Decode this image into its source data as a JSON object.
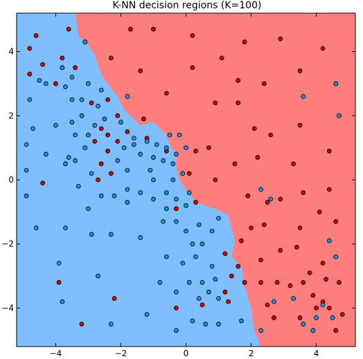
{
  "chart_data": {
    "type": "scatter",
    "title": "K-NN decision regions (K=100)",
    "xlabel": "",
    "ylabel": "",
    "xlim": [
      -5.2,
      5.2
    ],
    "ylim": [
      -5.2,
      5.2
    ],
    "xticks": [
      -4,
      -2,
      0,
      2,
      4
    ],
    "yticks": [
      -4,
      -2,
      0,
      2,
      4
    ],
    "grid": false,
    "legend": "none",
    "region_colors": {
      "red": "#ff7f7f",
      "blue": "#80bfff"
    },
    "point_colors": {
      "red": "#cc0000",
      "blue": "#1f8fdf"
    },
    "decision_boundary": [
      [
        -3.4,
        5.2
      ],
      [
        -3.3,
        4.5
      ],
      [
        -3.0,
        4.2
      ],
      [
        -2.8,
        3.9
      ],
      [
        -2.6,
        3.3
      ],
      [
        -2.4,
        3.0
      ],
      [
        -2.1,
        2.6
      ],
      [
        -1.9,
        2.2
      ],
      [
        -1.7,
        2.0
      ],
      [
        -1.4,
        1.7
      ],
      [
        -1.0,
        1.8
      ],
      [
        -0.6,
        1.4
      ],
      [
        -0.5,
        1.1
      ],
      [
        -0.3,
        0.8
      ],
      [
        -0.3,
        0.4
      ],
      [
        -0.2,
        0.0
      ],
      [
        0.0,
        -0.3
      ],
      [
        0.3,
        -0.7
      ],
      [
        0.9,
        -0.9
      ],
      [
        1.3,
        -1.1
      ],
      [
        1.5,
        -1.9
      ],
      [
        1.4,
        -2.4
      ],
      [
        1.7,
        -2.7
      ],
      [
        1.8,
        -3.3
      ],
      [
        2.0,
        -4.0
      ],
      [
        2.1,
        -4.7
      ],
      [
        2.3,
        -5.2
      ]
    ],
    "series": [
      {
        "class": "red",
        "points": [
          [
            -4.6,
            4.5
          ],
          [
            -4.8,
            4.1
          ],
          [
            -3.6,
            4.7
          ],
          [
            -2.3,
            3.8
          ],
          [
            -3.8,
            3.8
          ],
          [
            -4.4,
            3.6
          ],
          [
            -4.8,
            3.3
          ],
          [
            -3.4,
            3.5
          ],
          [
            -4.0,
            3.0
          ],
          [
            -2.9,
            2.4
          ],
          [
            -1.7,
            4.7
          ],
          [
            -1.0,
            4.7
          ],
          [
            0.2,
            4.5
          ],
          [
            -1.4,
            3.4
          ],
          [
            -0.6,
            2.7
          ],
          [
            0.2,
            3.5
          ],
          [
            1.1,
            3.8
          ],
          [
            0.9,
            2.4
          ],
          [
            1.8,
            4.3
          ],
          [
            2.9,
            4.4
          ],
          [
            4.2,
            4.1
          ],
          [
            1.6,
            3.1
          ],
          [
            2.4,
            3.0
          ],
          [
            3.5,
            3.4
          ],
          [
            -2.1,
            2.0
          ],
          [
            -2.6,
            1.6
          ],
          [
            -2.4,
            1.4
          ],
          [
            -2.8,
            1.2
          ],
          [
            -2.1,
            1.2
          ],
          [
            -1.3,
            1.9
          ],
          [
            -1.2,
            1.3
          ],
          [
            -1.8,
            1.5
          ],
          [
            -2.4,
            0.9
          ],
          [
            -2.6,
            0.5
          ],
          [
            -2.3,
            0.2
          ],
          [
            -2.7,
            0.0
          ],
          [
            0.3,
            0.9
          ],
          [
            0.7,
            1.0
          ],
          [
            0.1,
            0.2
          ],
          [
            -0.6,
            0.9
          ],
          [
            1.6,
            2.4
          ],
          [
            2.1,
            1.6
          ],
          [
            2.6,
            1.4
          ],
          [
            3.5,
            1.7
          ],
          [
            4.4,
            0.9
          ],
          [
            3.3,
            0.5
          ],
          [
            2.2,
            0.7
          ],
          [
            1.5,
            0.5
          ],
          [
            0.9,
            0.0
          ],
          [
            0.3,
            -0.7
          ],
          [
            2.5,
            -0.7
          ],
          [
            1.9,
            -0.5
          ],
          [
            2.9,
            -0.6
          ],
          [
            3.6,
            -0.4
          ],
          [
            4.4,
            -0.3
          ],
          [
            2.0,
            -1.5
          ],
          [
            2.4,
            -1.4
          ],
          [
            3.5,
            -1.5
          ],
          [
            4.1,
            -1.0
          ],
          [
            4.6,
            -1.3
          ],
          [
            1.7,
            -1.9
          ],
          [
            2.9,
            -2.2
          ],
          [
            3.4,
            -2.1
          ],
          [
            4.2,
            -2.6
          ],
          [
            2.3,
            -2.5
          ],
          [
            1.6,
            -2.7
          ],
          [
            1.8,
            -3.2
          ],
          [
            2.3,
            -3.2
          ],
          [
            2.8,
            -3.2
          ],
          [
            3.2,
            -3.3
          ],
          [
            3.6,
            -3.2
          ],
          [
            3.8,
            -2.9
          ],
          [
            4.3,
            -3.1
          ],
          [
            4.7,
            -3.2
          ],
          [
            3.9,
            -3.6
          ],
          [
            4.2,
            -3.8
          ],
          [
            4.0,
            -4.0
          ],
          [
            4.4,
            -4.0
          ],
          [
            4.8,
            -4.2
          ],
          [
            4.6,
            -4.7
          ],
          [
            3.5,
            -4.3
          ],
          [
            2.7,
            -4.3
          ],
          [
            2.5,
            -3.9
          ],
          [
            1.4,
            -3.0
          ],
          [
            1.2,
            -3.5
          ],
          [
            1.3,
            -3.8
          ],
          [
            0.5,
            -3.9
          ],
          [
            -0.3,
            -4.0
          ],
          [
            -0.3,
            -0.9
          ],
          [
            1.2,
            -2.3
          ],
          [
            -3.2,
            -4.5
          ],
          [
            -3.9,
            -3.2
          ],
          [
            -2.2,
            -3.7
          ],
          [
            -4.4,
            -0.1
          ],
          [
            -2.4,
            2.5
          ]
        ]
      },
      {
        "class": "blue",
        "points": [
          [
            -3.1,
            4.3
          ],
          [
            -4.5,
            3.1
          ],
          [
            -3.8,
            3.5
          ],
          [
            -4.3,
            3.0
          ],
          [
            -3.5,
            3.2
          ],
          [
            -3.7,
            2.9
          ],
          [
            -3.5,
            2.5
          ],
          [
            -3.0,
            3.0
          ],
          [
            -3.2,
            2.5
          ],
          [
            -2.6,
            2.8
          ],
          [
            -1.8,
            2.6
          ],
          [
            -4.8,
            2.5
          ],
          [
            -2.7,
            2.3
          ],
          [
            -3.2,
            2.0
          ],
          [
            -4.0,
            1.7
          ],
          [
            -4.7,
            1.6
          ],
          [
            -3.5,
            1.8
          ],
          [
            -3.4,
            1.4
          ],
          [
            -3.0,
            1.4
          ],
          [
            -2.8,
            1.7
          ],
          [
            -2.5,
            1.9
          ],
          [
            -2.0,
            1.8
          ],
          [
            -1.6,
            1.3
          ],
          [
            -1.2,
            1.2
          ],
          [
            -0.9,
            1.1
          ],
          [
            -0.6,
            1.0
          ],
          [
            -0.5,
            1.4
          ],
          [
            -0.2,
            1.4
          ],
          [
            0.0,
            1.0
          ],
          [
            -0.4,
            0.5
          ],
          [
            -0.1,
            0.2
          ],
          [
            -0.4,
            0.0
          ],
          [
            -1.6,
            1.1
          ],
          [
            -1.9,
            1.0
          ],
          [
            -2.1,
            0.6
          ],
          [
            -1.8,
            0.3
          ],
          [
            -1.4,
            0.8
          ],
          [
            -1.0,
            0.7
          ],
          [
            -0.7,
            0.6
          ],
          [
            -1.1,
            0.3
          ],
          [
            -3.1,
            1.0
          ],
          [
            -3.6,
            0.7
          ],
          [
            -4.9,
            1.1
          ],
          [
            -4.3,
            0.8
          ],
          [
            -3.7,
            0.5
          ],
          [
            -3.4,
            0.6
          ],
          [
            -2.9,
            0.2
          ],
          [
            -3.3,
            -0.2
          ],
          [
            -4.9,
            0.3
          ],
          [
            -4.9,
            -0.5
          ],
          [
            -2.6,
            -0.5
          ],
          [
            -2.2,
            -0.5
          ],
          [
            -1.8,
            -0.7
          ],
          [
            -1.4,
            -0.4
          ],
          [
            -1.0,
            -0.6
          ],
          [
            -0.6,
            -0.4
          ],
          [
            -0.3,
            -0.6
          ],
          [
            0.1,
            -0.4
          ],
          [
            0.0,
            -0.8
          ],
          [
            -3.0,
            -0.9
          ],
          [
            -4.6,
            -1.5
          ],
          [
            -3.7,
            -1.5
          ],
          [
            -2.9,
            -1.7
          ],
          [
            -2.3,
            -1.7
          ],
          [
            -1.4,
            -1.8
          ],
          [
            -0.7,
            -1.3
          ],
          [
            -0.3,
            -1.3
          ],
          [
            0.0,
            -1.6
          ],
          [
            0.4,
            -1.4
          ],
          [
            0.5,
            -2.0
          ],
          [
            0.8,
            -1.6
          ],
          [
            1.0,
            -1.2
          ],
          [
            -0.6,
            -2.4
          ],
          [
            -0.1,
            -2.6
          ],
          [
            0.3,
            -2.4
          ],
          [
            0.8,
            -2.7
          ],
          [
            0.5,
            -3.2
          ],
          [
            0.1,
            -3.2
          ],
          [
            0.9,
            -3.1
          ],
          [
            -0.8,
            -3.2
          ],
          [
            -0.3,
            -3.5
          ],
          [
            0.4,
            -3.7
          ],
          [
            0.7,
            -3.5
          ],
          [
            1.0,
            -3.7
          ],
          [
            -2.7,
            -3.0
          ],
          [
            -3.9,
            -2.6
          ],
          [
            -3.8,
            -3.8
          ],
          [
            -2.3,
            -4.5
          ],
          [
            -1.2,
            -4.2
          ],
          [
            0.2,
            -4.4
          ],
          [
            0.6,
            -4.5
          ],
          [
            1.0,
            -4.5
          ],
          [
            1.7,
            -4.4
          ],
          [
            -0.3,
            -4.7
          ],
          [
            2.3,
            -4.7
          ],
          [
            2.7,
            -3.8
          ],
          [
            3.6,
            -4.5
          ],
          [
            4.0,
            -4.3
          ],
          [
            4.5,
            -4.3
          ],
          [
            3.9,
            -4.7
          ],
          [
            3.3,
            -3.7
          ],
          [
            4.2,
            -3.9
          ],
          [
            4.6,
            -2.4
          ],
          [
            4.4,
            -1.9
          ],
          [
            2.6,
            -0.6
          ],
          [
            2.3,
            -0.3
          ],
          [
            4.7,
            2.0
          ],
          [
            4.6,
            3.0
          ],
          [
            3.6,
            2.6
          ],
          [
            -1.8,
            -0.3
          ],
          [
            -1.0,
            0.0
          ],
          [
            -0.6,
            -0.9
          ],
          [
            0.2,
            -2.0
          ],
          [
            -0.3,
            0.8
          ]
        ]
      }
    ]
  }
}
